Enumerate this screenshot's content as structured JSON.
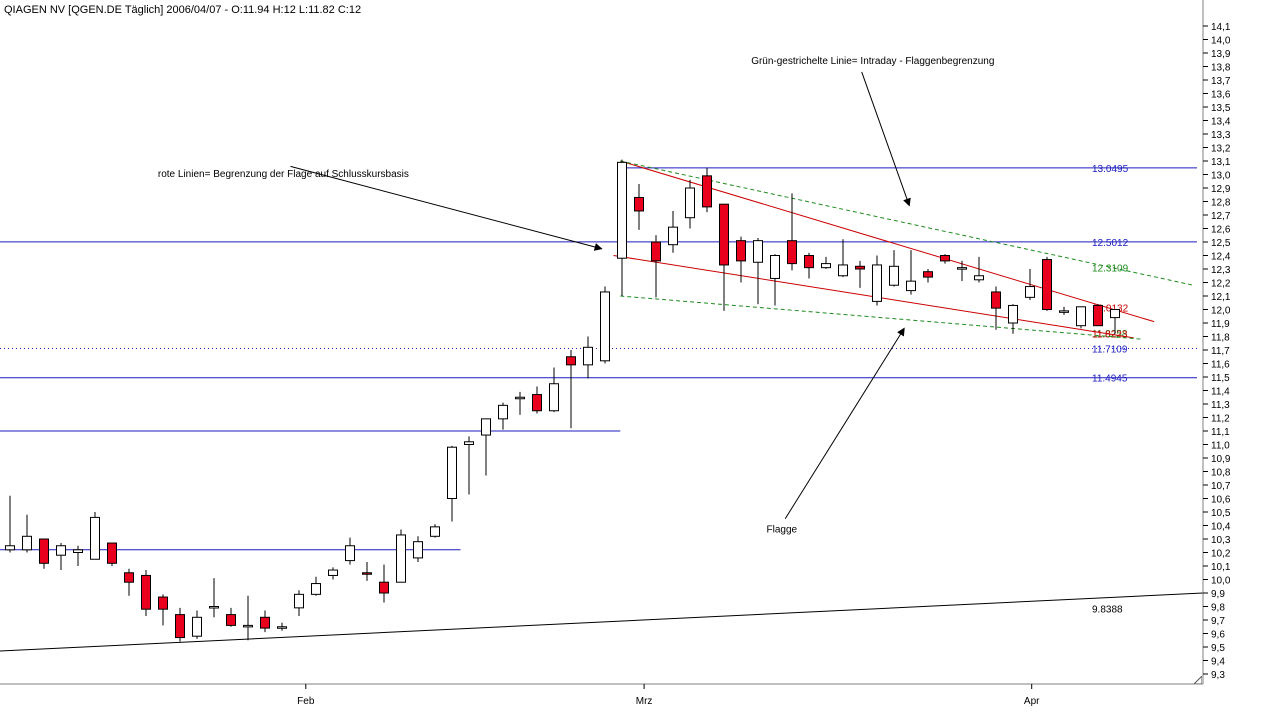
{
  "chart_data": {
    "type": "candlestick",
    "title": "QIAGEN NV [QGEN.DE  Täglich] 2006/04/07 - O:11.94 H:12 L:11.82 C:12",
    "ylim": [
      9.3,
      14.1
    ],
    "y_ticks": [
      "14,1",
      "14,0",
      "13,9",
      "13,8",
      "13,7",
      "13,6",
      "13,5",
      "13,4",
      "13,3",
      "13,2",
      "13,1",
      "13,0",
      "12,9",
      "12,8",
      "12,7",
      "12,6",
      "12,5",
      "12,4",
      "12,3",
      "12,2",
      "12,1",
      "12,0",
      "11,9",
      "11,8",
      "11,7",
      "11,6",
      "11,5",
      "11,4",
      "11,3",
      "11,2",
      "11,1",
      "11,0",
      "10,9",
      "10,8",
      "10,7",
      "10,6",
      "10,5",
      "10,4",
      "10,3",
      "10,2",
      "10,1",
      "10,0",
      "9,9",
      "9,8",
      "9,7",
      "9,6",
      "9,5",
      "9,4",
      "9,3"
    ],
    "x_ticks": [
      {
        "label": "Feb",
        "bar": 17.4
      },
      {
        "label": "Mrz",
        "bar": 37.3
      },
      {
        "label": "Apr",
        "bar": 60.1
      }
    ],
    "grid": false,
    "candles": [
      {
        "o": 10.22,
        "h": 10.62,
        "l": 10.2,
        "c": 10.25
      },
      {
        "o": 10.22,
        "h": 10.48,
        "l": 10.2,
        "c": 10.32
      },
      {
        "o": 10.3,
        "h": 10.3,
        "l": 10.08,
        "c": 10.12
      },
      {
        "o": 10.18,
        "h": 10.27,
        "l": 10.07,
        "c": 10.25
      },
      {
        "o": 10.2,
        "h": 10.25,
        "l": 10.1,
        "c": 10.22
      },
      {
        "o": 10.15,
        "h": 10.5,
        "l": 10.15,
        "c": 10.46
      },
      {
        "o": 10.27,
        "h": 10.27,
        "l": 10.1,
        "c": 10.12
      },
      {
        "o": 10.05,
        "h": 10.08,
        "l": 9.88,
        "c": 9.98
      },
      {
        "o": 10.03,
        "h": 10.07,
        "l": 9.73,
        "c": 9.78
      },
      {
        "o": 9.87,
        "h": 9.89,
        "l": 9.66,
        "c": 9.78
      },
      {
        "o": 9.74,
        "h": 9.79,
        "l": 9.54,
        "c": 9.57
      },
      {
        "o": 9.58,
        "h": 9.77,
        "l": 9.56,
        "c": 9.72
      },
      {
        "o": 9.8,
        "h": 10.01,
        "l": 9.72,
        "c": 9.8
      },
      {
        "o": 9.74,
        "h": 9.79,
        "l": 9.65,
        "c": 9.66
      },
      {
        "o": 9.66,
        "h": 9.88,
        "l": 9.55,
        "c": 9.66
      },
      {
        "o": 9.72,
        "h": 9.77,
        "l": 9.61,
        "c": 9.64
      },
      {
        "o": 9.65,
        "h": 9.68,
        "l": 9.62,
        "c": 9.65
      },
      {
        "o": 9.79,
        "h": 9.92,
        "l": 9.73,
        "c": 9.89
      },
      {
        "o": 9.89,
        "h": 10.02,
        "l": 9.88,
        "c": 9.97
      },
      {
        "o": 10.03,
        "h": 10.09,
        "l": 10.0,
        "c": 10.07
      },
      {
        "o": 10.14,
        "h": 10.31,
        "l": 10.11,
        "c": 10.25
      },
      {
        "o": 10.05,
        "h": 10.13,
        "l": 9.99,
        "c": 10.04
      },
      {
        "o": 9.98,
        "h": 10.11,
        "l": 9.83,
        "c": 9.9
      },
      {
        "o": 9.98,
        "h": 10.37,
        "l": 9.98,
        "c": 10.33
      },
      {
        "o": 10.16,
        "h": 10.32,
        "l": 10.13,
        "c": 10.28
      },
      {
        "o": 10.32,
        "h": 10.41,
        "l": 10.31,
        "c": 10.39
      },
      {
        "o": 10.6,
        "h": 10.99,
        "l": 10.43,
        "c": 10.98
      },
      {
        "o": 11.0,
        "h": 11.06,
        "l": 10.63,
        "c": 11.02
      },
      {
        "o": 11.07,
        "h": 11.15,
        "l": 10.77,
        "c": 11.19
      },
      {
        "o": 11.19,
        "h": 11.31,
        "l": 11.11,
        "c": 11.29
      },
      {
        "o": 11.35,
        "h": 11.39,
        "l": 11.22,
        "c": 11.35
      },
      {
        "o": 11.37,
        "h": 11.43,
        "l": 11.23,
        "c": 11.25
      },
      {
        "o": 11.25,
        "h": 11.57,
        "l": 11.24,
        "c": 11.45
      },
      {
        "o": 11.65,
        "h": 11.7,
        "l": 11.12,
        "c": 11.59
      },
      {
        "o": 11.59,
        "h": 11.8,
        "l": 11.49,
        "c": 11.72
      },
      {
        "o": 11.62,
        "h": 12.17,
        "l": 11.6,
        "c": 12.13
      },
      {
        "o": 12.38,
        "h": 13.11,
        "l": 12.1,
        "c": 13.09
      },
      {
        "o": 12.83,
        "h": 12.93,
        "l": 12.59,
        "c": 12.73
      },
      {
        "o": 12.5,
        "h": 12.55,
        "l": 12.09,
        "c": 12.36
      },
      {
        "o": 12.48,
        "h": 12.73,
        "l": 12.42,
        "c": 12.61
      },
      {
        "o": 12.68,
        "h": 12.96,
        "l": 12.6,
        "c": 12.9
      },
      {
        "o": 12.99,
        "h": 13.05,
        "l": 12.72,
        "c": 12.76
      },
      {
        "o": 12.78,
        "h": 12.78,
        "l": 11.99,
        "c": 12.33
      },
      {
        "o": 12.51,
        "h": 12.54,
        "l": 12.2,
        "c": 12.36
      },
      {
        "o": 12.35,
        "h": 12.53,
        "l": 12.04,
        "c": 12.51
      },
      {
        "o": 12.23,
        "h": 12.41,
        "l": 12.03,
        "c": 12.4
      },
      {
        "o": 12.51,
        "h": 12.86,
        "l": 12.29,
        "c": 12.34
      },
      {
        "o": 12.4,
        "h": 12.42,
        "l": 12.23,
        "c": 12.31
      },
      {
        "o": 12.31,
        "h": 12.39,
        "l": 12.3,
        "c": 12.34
      },
      {
        "o": 12.25,
        "h": 12.52,
        "l": 12.24,
        "c": 12.33
      },
      {
        "o": 12.32,
        "h": 12.36,
        "l": 12.16,
        "c": 12.3
      },
      {
        "o": 12.06,
        "h": 12.4,
        "l": 12.03,
        "c": 12.33
      },
      {
        "o": 12.18,
        "h": 12.44,
        "l": 12.17,
        "c": 12.32
      },
      {
        "o": 12.14,
        "h": 12.44,
        "l": 12.11,
        "c": 12.21
      },
      {
        "o": 12.28,
        "h": 12.3,
        "l": 12.2,
        "c": 12.24
      },
      {
        "o": 12.4,
        "h": 12.41,
        "l": 12.34,
        "c": 12.36
      },
      {
        "o": 12.31,
        "h": 12.36,
        "l": 12.21,
        "c": 12.31
      },
      {
        "o": 12.22,
        "h": 12.39,
        "l": 12.2,
        "c": 12.25
      },
      {
        "o": 12.13,
        "h": 12.17,
        "l": 11.85,
        "c": 12.01
      },
      {
        "o": 11.9,
        "h": 12.04,
        "l": 11.82,
        "c": 12.03
      },
      {
        "o": 12.09,
        "h": 12.3,
        "l": 12.07,
        "c": 12.17
      },
      {
        "o": 12.37,
        "h": 12.39,
        "l": 11.99,
        "c": 12.0
      },
      {
        "o": 11.99,
        "h": 12.02,
        "l": 11.96,
        "c": 11.99
      },
      {
        "o": 11.88,
        "h": 12.02,
        "l": 11.86,
        "c": 12.02
      },
      {
        "o": 12.03,
        "h": 12.04,
        "l": 11.88,
        "c": 11.88
      },
      {
        "o": 11.94,
        "h": 12.0,
        "l": 11.82,
        "c": 12.0
      }
    ],
    "levels": [
      {
        "value": 13.0495,
        "label": "13.0495",
        "color": "#1c1cbe",
        "label_color": "#1c1cbe",
        "x_from": 35.9,
        "style": "solid"
      },
      {
        "value": 12.5012,
        "label": "12.5012",
        "color": "#1c1cbe",
        "label_color": "#1c1cbe",
        "x_from": -1,
        "style": "solid"
      },
      {
        "value": 12.3109,
        "label": "12.3109",
        "color": "",
        "label_color": "#1e8c1e",
        "x_from": null,
        "style": "none"
      },
      {
        "value": 12.0132,
        "label": "12.0132",
        "color": "",
        "label_color": "#cc0000",
        "x_from": null,
        "style": "none"
      },
      {
        "value": 11.8258,
        "label": "11.8258",
        "color": "",
        "label_color": "#1e8c1e",
        "x_from": null,
        "style": "none"
      },
      {
        "value": 11.8223,
        "label": "11.8223",
        "color": "",
        "label_color": "#cc0000",
        "x_from": null,
        "style": "none"
      },
      {
        "value": 11.7109,
        "label": "11.7109",
        "color": "#1c1cbe",
        "label_color": "#1c1cbe",
        "x_from": -1,
        "style": "dotted"
      },
      {
        "value": 11.4945,
        "label": "11.4945",
        "color": "#1c1cbe",
        "label_color": "#1c1cbe",
        "x_from": -1,
        "style": "solid"
      }
    ],
    "segments": [
      {
        "x1": -1,
        "y1": 11.1,
        "x2": 35.9,
        "y2": 11.1,
        "color": "#1c1cbe",
        "dash": ""
      },
      {
        "x1": -1,
        "y1": 10.22,
        "x2": 26.5,
        "y2": 10.22,
        "color": "#1c1cbe",
        "dash": ""
      },
      {
        "x1": -1,
        "y1": 9.47,
        "x2": 71,
        "y2": 9.9,
        "color": "#000000",
        "dash": ""
      },
      {
        "x1": 35.9,
        "y1": 13.1,
        "x2": 67.3,
        "y2": 11.91,
        "color": "#cc0000",
        "dash": ""
      },
      {
        "x1": 35.5,
        "y1": 12.4,
        "x2": 66.1,
        "y2": 11.79,
        "color": "#cc0000",
        "dash": ""
      },
      {
        "x1": 35.9,
        "y1": 13.1,
        "x2": 69.6,
        "y2": 12.18,
        "color": "#1e8c1e",
        "dash": "4,3"
      },
      {
        "x1": 35.9,
        "y1": 12.1,
        "x2": 66.6,
        "y2": 11.78,
        "color": "#1e8c1e",
        "dash": "4,3"
      }
    ],
    "line_labels": [
      {
        "text": "9.8388",
        "value": 9.8388,
        "color": "#000000"
      }
    ],
    "annotations": [
      {
        "text": "Grün-gestrichelte Linie= Intraday - Flaggenbegrenzung",
        "x": 43.6,
        "y": 13.82,
        "arrow_from": [
          50.1,
          13.76
        ],
        "arrow_to": [
          52.9,
          12.77
        ]
      },
      {
        "text": "rote Linien= Begrenzung der Flage auf Schlusskursbasis",
        "x": 8.7,
        "y": 12.98,
        "arrow_from": [
          16.5,
          13.06
        ],
        "arrow_to": [
          34.8,
          12.45
        ]
      },
      {
        "text": "Flagge",
        "x": 44.5,
        "y": 10.35,
        "arrow_from": [
          45.6,
          10.45
        ],
        "arrow_to": [
          52.6,
          11.86
        ]
      }
    ]
  }
}
